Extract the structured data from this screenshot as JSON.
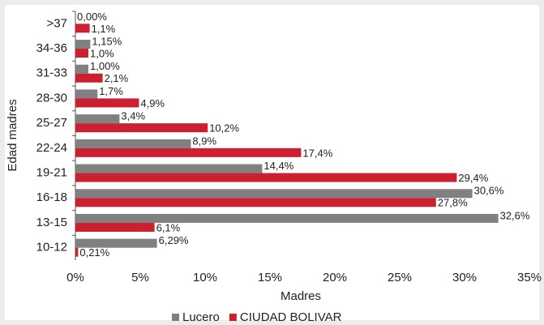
{
  "chart_data": {
    "type": "hbar",
    "categories": [
      ">37",
      "34-36",
      "31-33",
      "28-30",
      "25-27",
      "22-24",
      "19-21",
      "16-18",
      "13-15",
      "10-12"
    ],
    "series": [
      {
        "name": "Lucero",
        "color": "#808080",
        "values": [
          0.0,
          1.15,
          1.0,
          1.7,
          3.4,
          8.9,
          14.4,
          30.6,
          32.6,
          6.29
        ],
        "value_labels": [
          "0,00%",
          "1,15%",
          "1,00%",
          "1,7%",
          "3,4%",
          "8,9%",
          "14,4%",
          "30,6%",
          "32,6%",
          "6,29%"
        ]
      },
      {
        "name": "CIUDAD BOLIVAR",
        "color": "#cc1f2f",
        "values": [
          1.1,
          1.0,
          2.1,
          4.9,
          10.2,
          17.4,
          29.4,
          27.8,
          6.1,
          0.21
        ],
        "value_labels": [
          "1,1%",
          "1,0%",
          "2,1%",
          "4,9%",
          "10,2%",
          "17,4%",
          "29,4%",
          "27,8%",
          "6,1%",
          "0,21%"
        ]
      }
    ],
    "xlabel": "Madres",
    "ylabel": "Edad madres",
    "xlim": [
      0,
      35
    ],
    "xticks": [
      {
        "value": 0,
        "label": "0%"
      },
      {
        "value": 5,
        "label": "5%"
      },
      {
        "value": 10,
        "label": "10%"
      },
      {
        "value": 15,
        "label": "15%"
      },
      {
        "value": 20,
        "label": "20%"
      },
      {
        "value": 25,
        "label": "25%"
      },
      {
        "value": 30,
        "label": "30%"
      },
      {
        "value": 35,
        "label": "35%"
      }
    ],
    "legend": "bottom"
  }
}
